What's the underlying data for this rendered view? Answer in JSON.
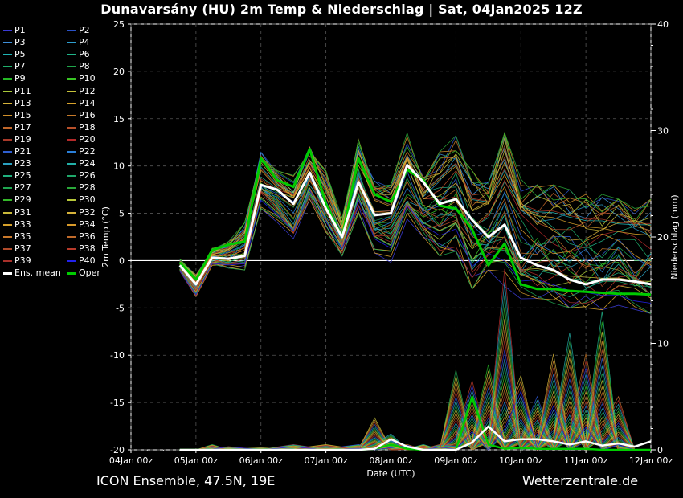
{
  "title": "Dunavarsány  (HU)  2m Temp & Niederschlag | Sat, 04Jan2025 12Z",
  "footer": {
    "model": "ICON Ensemble, 47.5N, 19E",
    "source": "Wetterzentrale.de"
  },
  "colors": {
    "background": "#000000",
    "grid": "#555555",
    "zero_line": "#ffffff",
    "mean": "#ffffff",
    "oper": "#00cc00"
  },
  "legend": [
    {
      "name": "P1",
      "color": "#3b3bd6"
    },
    {
      "name": "P2",
      "color": "#2a52c8"
    },
    {
      "name": "P3",
      "color": "#3f8fd9"
    },
    {
      "name": "P4",
      "color": "#2e9ecf"
    },
    {
      "name": "P5",
      "color": "#1fb5b5"
    },
    {
      "name": "P6",
      "color": "#20b58a"
    },
    {
      "name": "P7",
      "color": "#1fae6a"
    },
    {
      "name": "P8",
      "color": "#1fa64b"
    },
    {
      "name": "P9",
      "color": "#25b825"
    },
    {
      "name": "P10",
      "color": "#39c524"
    },
    {
      "name": "P11",
      "color": "#a8c83a"
    },
    {
      "name": "P12",
      "color": "#c6c23a"
    },
    {
      "name": "P13",
      "color": "#d6b33a"
    },
    {
      "name": "P14",
      "color": "#d8a32c"
    },
    {
      "name": "P15",
      "color": "#d0902a"
    },
    {
      "name": "P16",
      "color": "#c67a2a"
    },
    {
      "name": "P17",
      "color": "#c0662a"
    },
    {
      "name": "P18",
      "color": "#b8502a"
    },
    {
      "name": "P19",
      "color": "#a83a2a"
    },
    {
      "name": "P20",
      "color": "#b32a2a"
    },
    {
      "name": "P21",
      "color": "#2f5fd0"
    },
    {
      "name": "P22",
      "color": "#2a7fd8"
    },
    {
      "name": "P23",
      "color": "#2aa0c0"
    },
    {
      "name": "P24",
      "color": "#22b0a8"
    },
    {
      "name": "P25",
      "color": "#1fb07e"
    },
    {
      "name": "P26",
      "color": "#1fa86a"
    },
    {
      "name": "P27",
      "color": "#1fa650"
    },
    {
      "name": "P28",
      "color": "#2aa83a"
    },
    {
      "name": "P29",
      "color": "#35b82a"
    },
    {
      "name": "P30",
      "color": "#b8c83a"
    },
    {
      "name": "P31",
      "color": "#c8b83a"
    },
    {
      "name": "P32",
      "color": "#d6b23a"
    },
    {
      "name": "P33",
      "color": "#d6a02a"
    },
    {
      "name": "P34",
      "color": "#d89a2a"
    },
    {
      "name": "P35",
      "color": "#c8782a"
    },
    {
      "name": "P36",
      "color": "#c06a2a"
    },
    {
      "name": "P37",
      "color": "#b04a2a"
    },
    {
      "name": "P38",
      "color": "#b83a2a"
    },
    {
      "name": "P39",
      "color": "#a8302a"
    },
    {
      "name": "P40",
      "color": "#2222ee"
    },
    {
      "name": "Ens. mean",
      "color": "#ffffff"
    },
    {
      "name": "Oper",
      "color": "#00cc00"
    }
  ],
  "chart_data": {
    "type": "line",
    "xlabel": "Date (UTC)",
    "ylabel": "2m Temp (°C)",
    "y2label": "Niederschlag (mm)",
    "ylim": [
      -20,
      25
    ],
    "y2lim": [
      0,
      40
    ],
    "yticks": [
      -20,
      -15,
      -10,
      -5,
      0,
      5,
      10,
      15,
      20,
      25
    ],
    "y2ticks": [
      0,
      10,
      20,
      30,
      40
    ],
    "xlim": [
      0,
      8
    ],
    "xticks": [
      {
        "x": 0,
        "label": "04Jan 00z"
      },
      {
        "x": 1,
        "label": "05Jan 00z"
      },
      {
        "x": 2,
        "label": "06Jan 00z"
      },
      {
        "x": 3,
        "label": "07Jan 00z"
      },
      {
        "x": 4,
        "label": "08Jan 00z"
      },
      {
        "x": 5,
        "label": "09Jan 00z"
      },
      {
        "x": 6,
        "label": "10Jan 00z"
      },
      {
        "x": 7,
        "label": "11Jan 00z"
      },
      {
        "x": 8,
        "label": "12Jan 00z"
      }
    ],
    "grid": true,
    "legend_position": "left",
    "time_x": [
      0.75,
      1.0,
      1.25,
      1.5,
      1.75,
      2.0,
      2.25,
      2.5,
      2.75,
      3.0,
      3.25,
      3.5,
      3.75,
      4.0,
      4.25,
      4.5,
      4.75,
      5.0,
      5.25,
      5.5,
      5.75,
      6.0,
      6.25,
      6.5,
      6.75,
      7.0,
      7.25,
      7.5,
      7.75,
      8.0
    ],
    "temp_mean": [
      -0.5,
      -2.5,
      0.3,
      0.2,
      0.5,
      8.0,
      7.5,
      6.0,
      9.3,
      5.5,
      2.5,
      8.3,
      4.8,
      5.0,
      10.1,
      8.3,
      6.0,
      6.5,
      4.3,
      2.5,
      3.8,
      0.3,
      -0.5,
      -1.0,
      -2.0,
      -2.5,
      -2.0,
      -2.0,
      -2.2,
      -2.5
    ],
    "temp_oper": [
      -0.2,
      -2.0,
      1.1,
      1.7,
      2.0,
      10.8,
      8.5,
      7.8,
      11.8,
      6.0,
      2.5,
      10.8,
      7.0,
      6.2,
      9.6,
      8.5,
      5.8,
      5.5,
      3.3,
      -0.5,
      1.8,
      -2.5,
      -3.0,
      -3.0,
      -3.2,
      -3.3,
      -3.4,
      -3.5,
      -3.5,
      -3.6
    ],
    "precip_x": [
      0.75,
      1.0,
      1.25,
      1.5,
      2.0,
      2.5,
      3.0,
      3.5,
      3.75,
      4.0,
      4.25,
      4.5,
      4.75,
      5.0,
      5.25,
      5.5,
      5.75,
      6.0,
      6.25,
      6.5,
      6.75,
      7.0,
      7.25,
      7.5,
      7.75,
      8.0
    ],
    "precip_mean": [
      0,
      0,
      0,
      0,
      0,
      0,
      0,
      0,
      0.1,
      1.0,
      0.3,
      0,
      0,
      0,
      0.7,
      2.2,
      0.8,
      1.0,
      1.0,
      0.8,
      0.5,
      0.8,
      0.4,
      0.6,
      0.3,
      0.8
    ],
    "precip_oper": [
      0,
      0,
      0,
      0,
      0,
      0,
      0,
      0,
      0.1,
      0.5,
      0.1,
      0,
      0,
      0,
      5.0,
      0.5,
      0.1,
      0.2,
      0.1,
      0.1,
      0.1,
      0.1,
      0.0,
      0.0,
      0.0,
      0.0
    ],
    "temp_members_min": [
      -1.2,
      -3.8,
      -0.5,
      -0.8,
      -1.0,
      5.5,
      4.0,
      2.0,
      6.5,
      3.0,
      0.5,
      5.0,
      0.8,
      -0.3,
      4.0,
      2.5,
      0.5,
      1.0,
      -3.0,
      -1.0,
      -3.0,
      -4.5,
      -4.0,
      -4.5,
      -5.0,
      -5.0,
      -5.2,
      -5.0,
      -5.5,
      -5.6
    ],
    "temp_members_max": [
      0.2,
      -1.5,
      1.3,
      2.0,
      4.0,
      11.5,
      9.5,
      9.0,
      12.0,
      9.5,
      4.5,
      12.8,
      8.5,
      8.0,
      13.5,
      8.8,
      11.5,
      13.2,
      9.5,
      8.5,
      13.5,
      9.0,
      8.0,
      8.0,
      7.5,
      7.0,
      7.0,
      6.5,
      6.5,
      6.5
    ],
    "precip_members_max": [
      0,
      0,
      0.5,
      0.3,
      0.2,
      0.5,
      0.5,
      0.5,
      3.0,
      1.5,
      0.5,
      0.5,
      0.5,
      7.5,
      6.5,
      8.0,
      17.0,
      7.0,
      5.0,
      9.0,
      11.0,
      9.0,
      13.0,
      5.0,
      0,
      0
    ]
  }
}
